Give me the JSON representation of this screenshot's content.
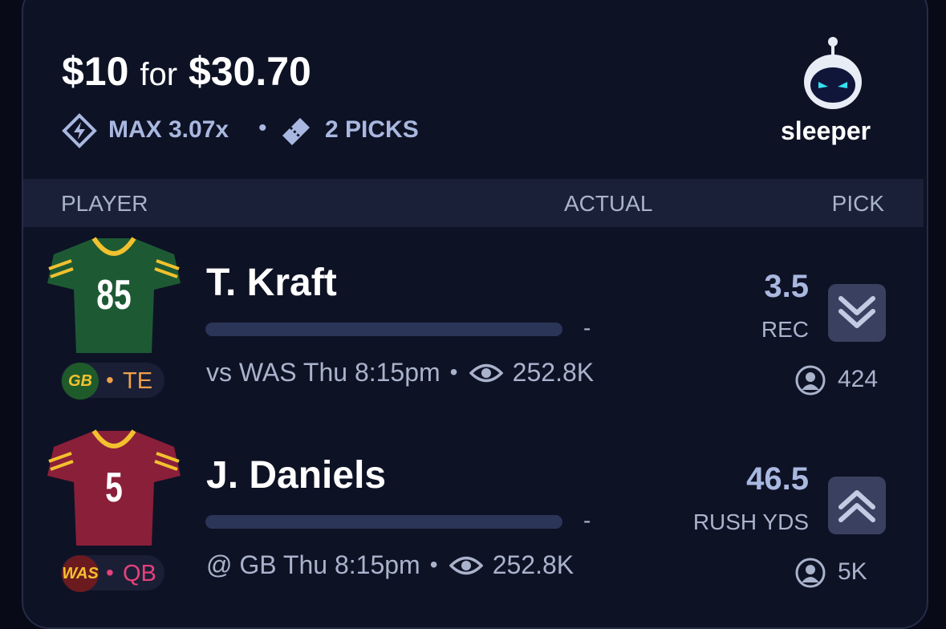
{
  "header": {
    "stake": "$10",
    "connector": "for",
    "payout": "$30.70",
    "multiplier": "MAX 3.07x",
    "picks": "2 PICKS",
    "brand": "sleeper"
  },
  "columns": [
    "PLAYER",
    "ACTUAL",
    "PICK"
  ],
  "rows": [
    {
      "name": "T. Kraft",
      "jersey_number": "85",
      "team": "GB",
      "position": "TE",
      "actual": "-",
      "game": "vs WAS Thu 8:15pm",
      "views": "252.8K",
      "line": "3.5",
      "stat": "REC",
      "pickers": "424",
      "direction": "lower"
    },
    {
      "name": "J. Daniels",
      "jersey_number": "5",
      "team": "WAS",
      "position": "QB",
      "actual": "-",
      "game": "@ GB Thu 8:15pm",
      "views": "252.8K",
      "line": "46.5",
      "stat": "RUSH YDS",
      "pickers": "5K",
      "direction": "higher"
    }
  ]
}
